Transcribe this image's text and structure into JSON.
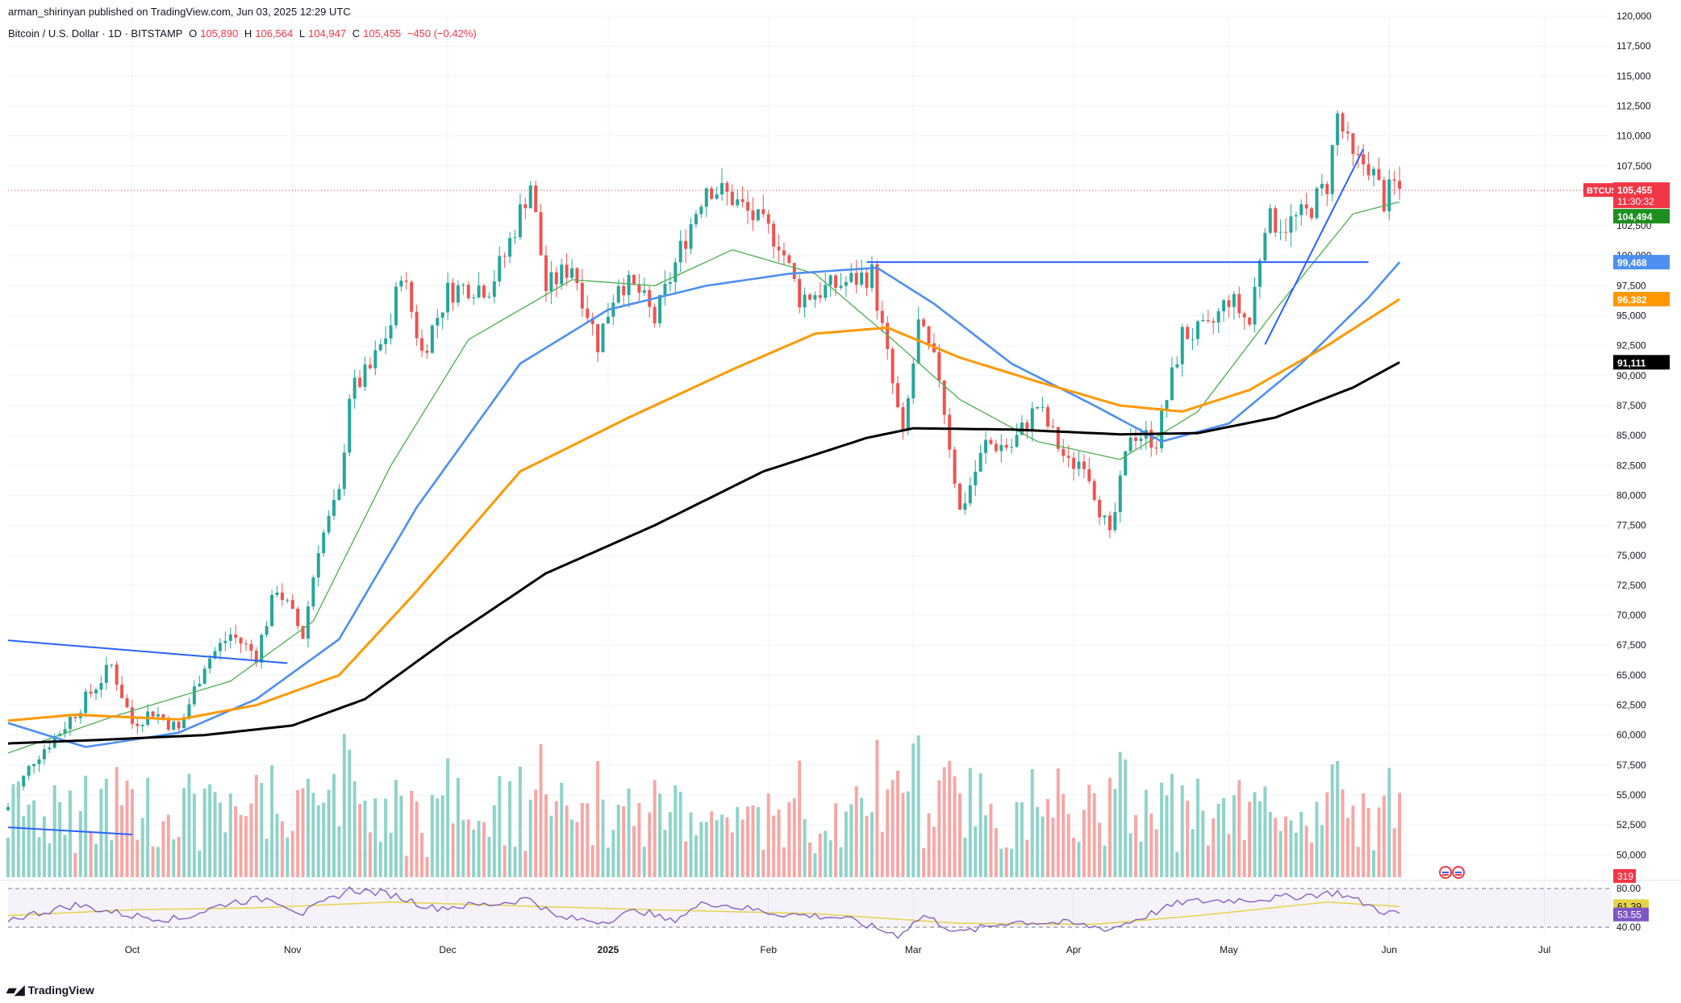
{
  "header": {
    "publisher": "arman_shirinyan published on TradingView.com, Jun 03, 2025 12:29 UTC",
    "symbol": "Bitcoin / U.S. Dollar · 1D · BITSTAMP",
    "o_label": "O",
    "o_value": "105,890",
    "h_label": "H",
    "h_value": "106,564",
    "l_label": "L",
    "l_value": "104,947",
    "c_label": "C",
    "c_value": "105,455",
    "change": "−450 (−0.42%)"
  },
  "brand": {
    "logo_text": "TradingView"
  },
  "colors": {
    "up": "#26a69a",
    "down": "#ef5350",
    "vol_up": "#8fd3c9",
    "vol_down": "#f6a7a5",
    "ma20": "#4caf50",
    "ma50": "#4d8ff0",
    "ma100": "#ff9800",
    "ma200": "#000000",
    "trend": "#2962ff",
    "rsi": "#7e57c2",
    "rsi_ma": "#e6d34a",
    "grid": "#f0f3fa"
  },
  "chart_data": {
    "type": "candlestick",
    "symbol": "BTCUSD",
    "timeframe": "1D",
    "ylim": [
      48000,
      120000
    ],
    "y_ticks": [
      "120,000",
      "117,500",
      "115,000",
      "112,500",
      "110,000",
      "107,500",
      "102,500",
      "100,000",
      "97,500",
      "95,000",
      "92,500",
      "90,000",
      "87,500",
      "85,000",
      "82,500",
      "80,000",
      "77,500",
      "75,000",
      "72,500",
      "70,000",
      "67,500",
      "65,000",
      "62,500",
      "60,000",
      "57,500",
      "55,000",
      "52,500",
      "50,000"
    ],
    "x_ticks": [
      "Oct",
      "Nov",
      "Dec",
      "2025",
      "Feb",
      "Mar",
      "Apr",
      "May",
      "Jun",
      "Jul"
    ],
    "x_tick_dates": [
      "2024-10-01",
      "2024-11-01",
      "2024-12-01",
      "2025-01-01",
      "2025-02-01",
      "2025-03-01",
      "2025-04-01",
      "2025-05-01",
      "2025-06-01",
      "2025-07-01"
    ],
    "x_range": [
      "2024-09-07",
      "2025-07-14"
    ],
    "close_path": [
      [
        "2024-09-07",
        54000
      ],
      [
        "2024-09-12",
        58000
      ],
      [
        "2024-09-17",
        60300
      ],
      [
        "2024-09-22",
        63000
      ],
      [
        "2024-09-27",
        65800
      ],
      [
        "2024-10-01",
        61000
      ],
      [
        "2024-10-05",
        62000
      ],
      [
        "2024-10-10",
        60400
      ],
      [
        "2024-10-15",
        66000
      ],
      [
        "2024-10-20",
        68400
      ],
      [
        "2024-10-25",
        66700
      ],
      [
        "2024-10-29",
        72400
      ],
      [
        "2024-11-03",
        68300
      ],
      [
        "2024-11-06",
        75800
      ],
      [
        "2024-11-10",
        80000
      ],
      [
        "2024-11-12",
        88500
      ],
      [
        "2024-11-16",
        90500
      ],
      [
        "2024-11-20",
        94300
      ],
      [
        "2024-11-22",
        98900
      ],
      [
        "2024-11-26",
        91900
      ],
      [
        "2024-12-01",
        97000
      ],
      [
        "2024-12-05",
        97500
      ],
      [
        "2024-12-09",
        97400
      ],
      [
        "2024-12-12",
        100000
      ],
      [
        "2024-12-17",
        106100
      ],
      [
        "2024-12-20",
        97200
      ],
      [
        "2024-12-25",
        99300
      ],
      [
        "2024-12-30",
        92700
      ],
      [
        "2025-01-03",
        98000
      ],
      [
        "2025-01-07",
        96900
      ],
      [
        "2025-01-10",
        94600
      ],
      [
        "2025-01-15",
        100500
      ],
      [
        "2025-01-20",
        106000
      ],
      [
        "2025-01-25",
        104800
      ],
      [
        "2025-01-31",
        102400
      ],
      [
        "2025-02-03",
        101300
      ],
      [
        "2025-02-07",
        96500
      ],
      [
        "2025-02-14",
        97500
      ],
      [
        "2025-02-21",
        98500
      ],
      [
        "2025-02-24",
        91500
      ],
      [
        "2025-02-27",
        84700
      ],
      [
        "2025-03-02",
        94200
      ],
      [
        "2025-03-06",
        90000
      ],
      [
        "2025-03-10",
        78600
      ],
      [
        "2025-03-15",
        84300
      ],
      [
        "2025-03-20",
        84100
      ],
      [
        "2025-03-25",
        87500
      ],
      [
        "2025-03-31",
        82500
      ],
      [
        "2025-04-03",
        83100
      ],
      [
        "2025-04-08",
        76300
      ],
      [
        "2025-04-12",
        85300
      ],
      [
        "2025-04-17",
        84600
      ],
      [
        "2025-04-22",
        93400
      ],
      [
        "2025-04-27",
        93700
      ],
      [
        "2025-05-01",
        96500
      ],
      [
        "2025-05-05",
        94300
      ],
      [
        "2025-05-08",
        103000
      ],
      [
        "2025-05-12",
        102600
      ],
      [
        "2025-05-16",
        103500
      ],
      [
        "2025-05-20",
        106000
      ],
      [
        "2025-05-22",
        111700
      ],
      [
        "2025-05-25",
        107800
      ],
      [
        "2025-05-28",
        107700
      ],
      [
        "2025-05-31",
        104600
      ],
      [
        "2025-06-02",
        105900
      ],
      [
        "2025-06-03",
        105455
      ]
    ],
    "moving_averages": [
      {
        "key": "ma20",
        "color": "#4caf50",
        "width": 1.3,
        "points": [
          [
            "2024-09-07",
            58500
          ],
          [
            "2024-09-27",
            61500
          ],
          [
            "2024-10-20",
            64500
          ],
          [
            "2024-11-05",
            69500
          ],
          [
            "2024-11-20",
            82500
          ],
          [
            "2024-12-05",
            93000
          ],
          [
            "2024-12-25",
            98000
          ],
          [
            "2025-01-10",
            97500
          ],
          [
            "2025-01-25",
            100500
          ],
          [
            "2025-02-10",
            98500
          ],
          [
            "2025-02-25",
            93000
          ],
          [
            "2025-03-10",
            88000
          ],
          [
            "2025-03-25",
            84500
          ],
          [
            "2025-04-10",
            83000
          ],
          [
            "2025-04-25",
            87000
          ],
          [
            "2025-05-10",
            95500
          ],
          [
            "2025-05-25",
            103500
          ],
          [
            "2025-06-03",
            104494
          ]
        ]
      },
      {
        "key": "ma50",
        "color": "#4d8ff0",
        "width": 2.6,
        "points": [
          [
            "2024-09-07",
            61000
          ],
          [
            "2024-09-22",
            59000
          ],
          [
            "2024-10-10",
            60200
          ],
          [
            "2024-10-25",
            63000
          ],
          [
            "2024-11-10",
            68000
          ],
          [
            "2024-11-25",
            79000
          ],
          [
            "2024-12-15",
            91000
          ],
          [
            "2025-01-01",
            95500
          ],
          [
            "2025-01-20",
            97500
          ],
          [
            "2025-02-05",
            98500
          ],
          [
            "2025-02-22",
            99000
          ],
          [
            "2025-03-05",
            96000
          ],
          [
            "2025-03-20",
            91000
          ],
          [
            "2025-04-05",
            87500
          ],
          [
            "2025-04-18",
            84500
          ],
          [
            "2025-05-01",
            86000
          ],
          [
            "2025-05-15",
            91000
          ],
          [
            "2025-05-28",
            96500
          ],
          [
            "2025-06-03",
            99468
          ]
        ]
      },
      {
        "key": "ma100",
        "color": "#ff9800",
        "width": 3,
        "points": [
          [
            "2024-09-07",
            61200
          ],
          [
            "2024-09-20",
            61700
          ],
          [
            "2024-10-10",
            61300
          ],
          [
            "2024-10-25",
            62500
          ],
          [
            "2024-11-10",
            65000
          ],
          [
            "2024-11-25",
            72000
          ],
          [
            "2024-12-15",
            82000
          ],
          [
            "2025-01-05",
            86500
          ],
          [
            "2025-01-25",
            90500
          ],
          [
            "2025-02-10",
            93500
          ],
          [
            "2025-02-24",
            94000
          ],
          [
            "2025-03-10",
            91500
          ],
          [
            "2025-03-25",
            89500
          ],
          [
            "2025-04-10",
            87500
          ],
          [
            "2025-04-22",
            87000
          ],
          [
            "2025-05-05",
            88800
          ],
          [
            "2025-05-20",
            92500
          ],
          [
            "2025-06-03",
            96382
          ]
        ]
      },
      {
        "key": "ma200",
        "color": "#000000",
        "width": 3,
        "points": [
          [
            "2024-09-07",
            59300
          ],
          [
            "2024-09-25",
            59600
          ],
          [
            "2024-10-15",
            60000
          ],
          [
            "2024-11-01",
            60800
          ],
          [
            "2024-11-15",
            63000
          ],
          [
            "2024-12-01",
            68000
          ],
          [
            "2024-12-20",
            73500
          ],
          [
            "2025-01-10",
            77500
          ],
          [
            "2025-01-31",
            82000
          ],
          [
            "2025-02-20",
            84800
          ],
          [
            "2025-03-01",
            85600
          ],
          [
            "2025-03-20",
            85500
          ],
          [
            "2025-04-10",
            85100
          ],
          [
            "2025-04-25",
            85200
          ],
          [
            "2025-05-10",
            86500
          ],
          [
            "2025-05-25",
            89000
          ],
          [
            "2025-06-03",
            91111
          ]
        ]
      }
    ],
    "horizontal_line": {
      "price": 99468,
      "from": "2025-02-20",
      "to": "2025-05-28",
      "color": "#2962ff"
    },
    "trendlines": [
      {
        "from": [
          "2024-09-07",
          67900
        ],
        "to": [
          "2024-10-31",
          66000
        ],
        "color": "#2962ff"
      },
      {
        "from": [
          "2025-05-08",
          92600
        ],
        "to": [
          "2025-05-27",
          108900
        ],
        "color": "#2962ff"
      }
    ],
    "volume_trendline": {
      "from": [
        "2024-09-07",
        52300
      ],
      "to": [
        "2024-10-01",
        51700
      ],
      "color": "#2962ff"
    },
    "current_price": {
      "label": "BTCUSD",
      "value": "105,455",
      "countdown": "11:30:32",
      "color": "#f23645"
    },
    "ma_labels": [
      {
        "value": "104,494",
        "color": "#1e8f1e"
      },
      {
        "value": "99,468",
        "color": "#4d8ff0"
      },
      {
        "value": "96,382",
        "color": "#ff9800"
      },
      {
        "value": "91,111",
        "color": "#000000"
      }
    ],
    "volume_label": {
      "value": "319",
      "color": "#f23645"
    },
    "rsi": {
      "levels": [
        80,
        40
      ],
      "tick_labels": [
        "80.00",
        "40.00"
      ],
      "rsi_value": "53.55",
      "rsi_ma_value": "61.39",
      "series": [
        [
          "2024-09-07",
          48
        ],
        [
          "2024-09-20",
          63
        ],
        [
          "2024-10-01",
          52
        ],
        [
          "2024-10-10",
          48
        ],
        [
          "2024-10-20",
          66
        ],
        [
          "2024-10-28",
          70
        ],
        [
          "2024-11-03",
          54
        ],
        [
          "2024-11-12",
          79
        ],
        [
          "2024-11-20",
          74
        ],
        [
          "2024-11-28",
          60
        ],
        [
          "2024-12-10",
          64
        ],
        [
          "2024-12-17",
          70
        ],
        [
          "2024-12-22",
          50
        ],
        [
          "2024-12-31",
          46
        ],
        [
          "2025-01-07",
          58
        ],
        [
          "2025-01-13",
          46
        ],
        [
          "2025-01-20",
          66
        ],
        [
          "2025-02-03",
          54
        ],
        [
          "2025-02-15",
          50
        ],
        [
          "2025-02-26",
          32
        ],
        [
          "2025-03-03",
          52
        ],
        [
          "2025-03-10",
          34
        ],
        [
          "2025-03-20",
          46
        ],
        [
          "2025-03-31",
          44
        ],
        [
          "2025-04-08",
          38
        ],
        [
          "2025-04-22",
          66
        ],
        [
          "2025-05-10",
          70
        ],
        [
          "2025-05-22",
          76
        ],
        [
          "2025-05-31",
          56
        ],
        [
          "2025-06-03",
          53.55
        ]
      ],
      "ma_series": [
        [
          "2024-09-07",
          52
        ],
        [
          "2024-10-01",
          58
        ],
        [
          "2024-10-25",
          60
        ],
        [
          "2024-11-20",
          66
        ],
        [
          "2024-12-15",
          62
        ],
        [
          "2025-01-10",
          58
        ],
        [
          "2025-02-10",
          54
        ],
        [
          "2025-03-10",
          44
        ],
        [
          "2025-04-05",
          43
        ],
        [
          "2025-04-25",
          52
        ],
        [
          "2025-05-20",
          66
        ],
        [
          "2025-06-03",
          61.39
        ]
      ]
    }
  }
}
